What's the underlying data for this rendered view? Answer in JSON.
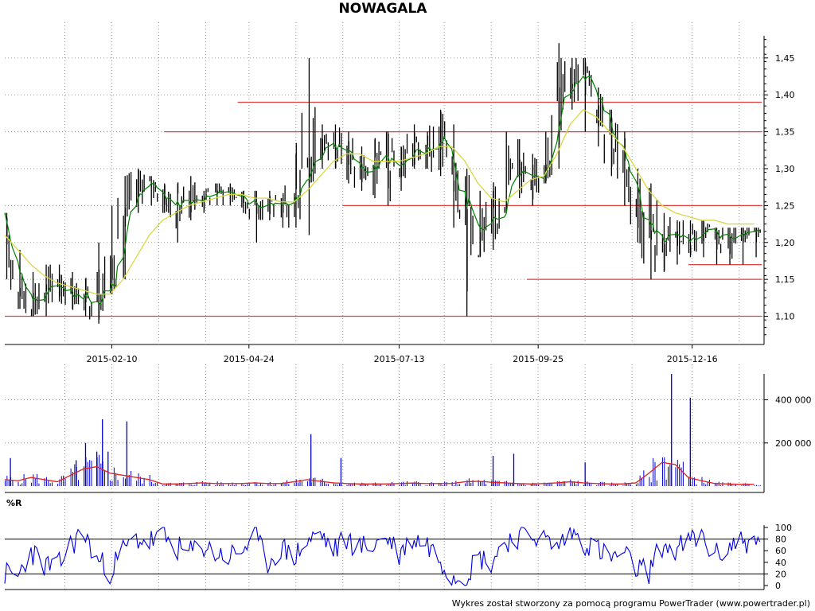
{
  "chart_data": [
    {
      "type": "candlestick",
      "title": "NOWAGALA",
      "x_dates": [
        "2014-12-15",
        "2014-12-22",
        "2014-12-29",
        "2015-01-05",
        "2015-01-12",
        "2015-01-19",
        "2015-01-26",
        "2015-02-02",
        "2015-02-09",
        "2015-02-16",
        "2015-02-23",
        "2015-03-02",
        "2015-03-09",
        "2015-03-16",
        "2015-03-23",
        "2015-03-30",
        "2015-04-06",
        "2015-04-13",
        "2015-04-20",
        "2015-04-27",
        "2015-05-04",
        "2015-05-11",
        "2015-05-18",
        "2015-05-25",
        "2015-06-01",
        "2015-06-08",
        "2015-06-15",
        "2015-06-22",
        "2015-06-29",
        "2015-07-06",
        "2015-07-13",
        "2015-07-20",
        "2015-07-27",
        "2015-08-03",
        "2015-08-10",
        "2015-08-17",
        "2015-08-24",
        "2015-08-31",
        "2015-09-07",
        "2015-09-14",
        "2015-09-21",
        "2015-09-28",
        "2015-10-05",
        "2015-10-12",
        "2015-10-19",
        "2015-10-26",
        "2015-11-02",
        "2015-11-09",
        "2015-11-16",
        "2015-11-23",
        "2015-11-30",
        "2015-12-07",
        "2015-12-14",
        "2015-12-21",
        "2015-12-28",
        "2016-01-04",
        "2016-01-11",
        "2016-01-18"
      ],
      "close": [
        1.22,
        1.14,
        1.12,
        1.13,
        1.15,
        1.13,
        1.12,
        1.14,
        1.15,
        1.22,
        1.27,
        1.29,
        1.26,
        1.25,
        1.26,
        1.26,
        1.27,
        1.27,
        1.26,
        1.25,
        1.26,
        1.24,
        1.26,
        1.34,
        1.33,
        1.34,
        1.32,
        1.29,
        1.3,
        1.31,
        1.3,
        1.33,
        1.32,
        1.34,
        1.32,
        1.26,
        1.2,
        1.22,
        1.27,
        1.31,
        1.3,
        1.3,
        1.37,
        1.42,
        1.44,
        1.38,
        1.35,
        1.32,
        1.26,
        1.21,
        1.2,
        1.21,
        1.2,
        1.21,
        1.21,
        1.2,
        1.21,
        1.21
      ],
      "high": [
        1.24,
        1.19,
        1.16,
        1.17,
        1.17,
        1.16,
        1.15,
        1.2,
        1.25,
        1.29,
        1.3,
        1.29,
        1.28,
        1.28,
        1.29,
        1.27,
        1.28,
        1.28,
        1.27,
        1.27,
        1.27,
        1.26,
        1.32,
        1.45,
        1.36,
        1.36,
        1.35,
        1.33,
        1.34,
        1.35,
        1.33,
        1.36,
        1.35,
        1.38,
        1.36,
        1.3,
        1.27,
        1.27,
        1.35,
        1.34,
        1.32,
        1.35,
        1.47,
        1.45,
        1.45,
        1.41,
        1.38,
        1.35,
        1.3,
        1.28,
        1.24,
        1.23,
        1.23,
        1.23,
        1.22,
        1.22,
        1.22,
        1.22
      ],
      "low": [
        1.15,
        1.11,
        1.1,
        1.1,
        1.12,
        1.11,
        1.1,
        1.09,
        1.13,
        1.15,
        1.24,
        1.25,
        1.24,
        1.2,
        1.23,
        1.24,
        1.25,
        1.25,
        1.24,
        1.2,
        1.23,
        1.22,
        1.22,
        1.21,
        1.3,
        1.3,
        1.28,
        1.27,
        1.26,
        1.25,
        1.27,
        1.3,
        1.3,
        1.29,
        1.22,
        1.1,
        1.18,
        1.19,
        1.24,
        1.26,
        1.25,
        1.28,
        1.3,
        1.38,
        1.35,
        1.33,
        1.29,
        1.25,
        1.2,
        1.15,
        1.16,
        1.17,
        1.18,
        1.18,
        1.17,
        1.17,
        1.17,
        1.18
      ],
      "ma_long": [
        1.21,
        1.19,
        1.17,
        1.155,
        1.145,
        1.14,
        1.135,
        1.13,
        1.13,
        1.15,
        1.18,
        1.21,
        1.23,
        1.24,
        1.25,
        1.255,
        1.26,
        1.265,
        1.265,
        1.26,
        1.26,
        1.255,
        1.255,
        1.27,
        1.29,
        1.31,
        1.32,
        1.32,
        1.31,
        1.31,
        1.31,
        1.315,
        1.32,
        1.33,
        1.33,
        1.31,
        1.28,
        1.26,
        1.255,
        1.27,
        1.285,
        1.29,
        1.32,
        1.36,
        1.38,
        1.37,
        1.35,
        1.33,
        1.3,
        1.27,
        1.25,
        1.24,
        1.235,
        1.23,
        1.23,
        1.225,
        1.225,
        1.225
      ],
      "horizontal_lines": [
        {
          "value": 1.39,
          "from": "2015-04-18",
          "to": "2016-01-22"
        },
        {
          "value": 1.35,
          "from": "2015-03-10",
          "to": "2016-01-22"
        },
        {
          "value": 1.25,
          "from": "2015-06-13",
          "to": "2016-01-22"
        },
        {
          "value": 1.15,
          "from": "2015-09-19",
          "to": "2016-01-22"
        },
        {
          "value": 1.1,
          "from": "2014-12-15",
          "to": "2016-01-22"
        },
        {
          "value": 1.17,
          "from": "2015-12-14",
          "to": "2016-01-22",
          "end_value": 1.17
        }
      ],
      "x_ticks": [
        "2015-02-10",
        "2015-04-24",
        "2015-07-13",
        "2015-09-25",
        "2015-12-16"
      ],
      "y_ticks": [
        "1,10",
        "1,15",
        "1,20",
        "1,25",
        "1,30",
        "1,35",
        "1,40",
        "1,45"
      ],
      "y_range": [
        1.065,
        1.48
      ],
      "x_range": [
        "2014-12-15",
        "2016-01-22"
      ],
      "grid": true,
      "colors": {
        "bars": "#000000",
        "ma_short": "#008000",
        "ma_long": "#d8d840",
        "hlines": "#e04040"
      }
    },
    {
      "type": "bar",
      "name": "volume",
      "y_ticks": [
        "200 000",
        "400 000"
      ],
      "y_range": [
        0,
        520000
      ],
      "spikes": [
        {
          "date": "2014-12-18",
          "value": 130000
        },
        {
          "date": "2015-01-22",
          "value": 120000
        },
        {
          "date": "2015-01-27",
          "value": 200000
        },
        {
          "date": "2015-02-02",
          "value": 160000
        },
        {
          "date": "2015-02-05",
          "value": 310000
        },
        {
          "date": "2015-02-08",
          "value": 160000
        },
        {
          "date": "2015-02-18",
          "value": 300000
        },
        {
          "date": "2015-05-27",
          "value": 240000
        },
        {
          "date": "2015-06-12",
          "value": 130000
        },
        {
          "date": "2015-09-01",
          "value": 140000
        },
        {
          "date": "2015-09-12",
          "value": 150000
        },
        {
          "date": "2015-10-20",
          "value": 110000
        },
        {
          "date": "2015-12-05",
          "value": 520000
        },
        {
          "date": "2015-12-15",
          "value": 410000
        }
      ],
      "ma": [
        30000,
        25000,
        40000,
        30000,
        20000,
        50000,
        80000,
        90000,
        60000,
        50000,
        40000,
        30000,
        10000,
        10000,
        12000,
        15000,
        12000,
        12000,
        12000,
        15000,
        12000,
        12000,
        20000,
        30000,
        22000,
        15000,
        12000,
        10000,
        10000,
        10000,
        12000,
        14000,
        12000,
        12000,
        12000,
        20000,
        22000,
        18000,
        15000,
        12000,
        10000,
        12000,
        15000,
        20000,
        15000,
        12000,
        10000,
        10000,
        15000,
        60000,
        110000,
        100000,
        40000,
        25000,
        12000,
        10000,
        8000,
        8000
      ],
      "colors": {
        "bars": "#0000cc",
        "ma": "#e02020"
      }
    },
    {
      "type": "line",
      "name": "%R",
      "label": "%R",
      "y_ticks": [
        "0",
        "20",
        "40",
        "60",
        "80",
        "100"
      ],
      "y_range": [
        0,
        100
      ],
      "reference_lines": [
        20,
        80
      ],
      "values": [
        20,
        15,
        60,
        35,
        30,
        70,
        90,
        45,
        25,
        60,
        80,
        75,
        85,
        65,
        55,
        70,
        55,
        50,
        60,
        85,
        40,
        65,
        50,
        75,
        90,
        60,
        80,
        65,
        70,
        85,
        55,
        80,
        75,
        50,
        20,
        15,
        50,
        40,
        75,
        85,
        90,
        80,
        65,
        95,
        75,
        65,
        45,
        55,
        30,
        25,
        70,
        60,
        75,
        85,
        50,
        65,
        80,
        70
      ],
      "colors": {
        "line": "#0000dd"
      }
    }
  ],
  "footer": "Wykres został stworzony za pomocą programu PowerTrader (www.powertrader.pl)"
}
